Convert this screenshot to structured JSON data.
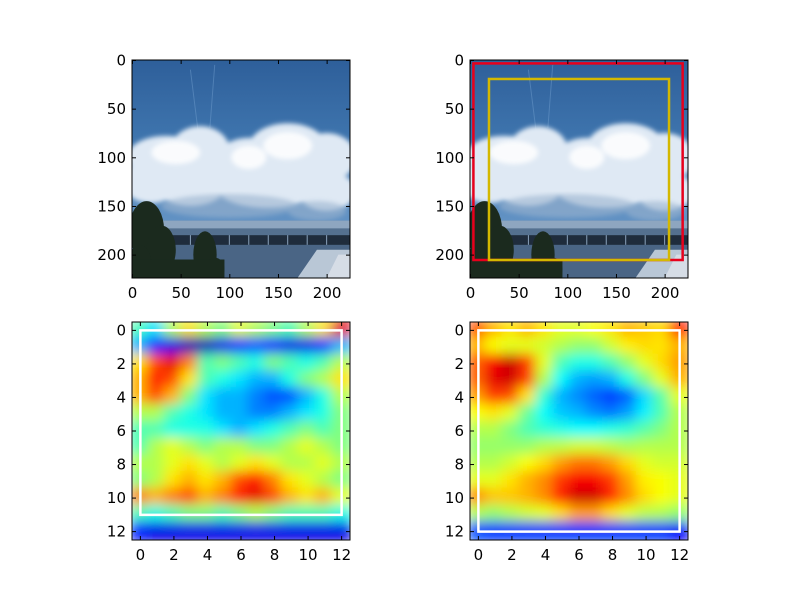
{
  "chart_data": [
    {
      "type": "image",
      "image": "sky-with-clouds-and-building",
      "xlim": [
        -0.5,
        223.5
      ],
      "ylim": [
        223.5,
        -0.5
      ],
      "xticks": [
        "0",
        "50",
        "100",
        "150",
        "200"
      ],
      "yticks": [
        "0",
        "50",
        "100",
        "150",
        "200"
      ]
    },
    {
      "type": "image",
      "image": "sky-with-clouds-and-building",
      "xlim": [
        -0.5,
        223.5
      ],
      "ylim": [
        223.5,
        -0.5
      ],
      "xticks": [
        "0",
        "50",
        "100",
        "150",
        "200"
      ],
      "yticks": [
        "0",
        "50",
        "100",
        "150",
        "200"
      ],
      "boxes": [
        {
          "color": "#e8001c",
          "x0": 3,
          "x1": 218,
          "y0": 3,
          "y1": 205
        },
        {
          "color": "#d4b800",
          "x0": 19,
          "x1": 204,
          "y0": 19,
          "y1": 205
        }
      ]
    },
    {
      "type": "heatmap",
      "colormap": "jet",
      "xlim": [
        -0.5,
        12.5
      ],
      "ylim": [
        12.5,
        -0.5
      ],
      "xticks": [
        "0",
        "2",
        "4",
        "6",
        "8",
        "10",
        "12"
      ],
      "yticks": [
        "0",
        "2",
        "4",
        "6",
        "8",
        "10",
        "12"
      ],
      "values": [
        [
          0.45,
          0.35,
          0.55,
          0.65,
          0.55,
          0.5,
          0.6,
          0.55,
          0.5,
          0.45,
          0.55,
          0.65,
          0.9
        ],
        [
          0.3,
          0.15,
          0.1,
          0.05,
          0.05,
          0.1,
          0.15,
          0.2,
          0.15,
          0.1,
          0.1,
          0.15,
          0.3
        ],
        [
          0.65,
          0.8,
          0.9,
          0.75,
          0.45,
          0.5,
          0.45,
          0.4,
          0.5,
          0.45,
          0.4,
          0.45,
          0.55
        ],
        [
          0.7,
          0.85,
          0.8,
          0.65,
          0.45,
          0.4,
          0.35,
          0.3,
          0.3,
          0.4,
          0.5,
          0.55,
          0.65
        ],
        [
          0.7,
          0.8,
          0.7,
          0.5,
          0.35,
          0.3,
          0.3,
          0.25,
          0.2,
          0.2,
          0.3,
          0.4,
          0.55
        ],
        [
          0.55,
          0.55,
          0.45,
          0.4,
          0.35,
          0.3,
          0.3,
          0.25,
          0.25,
          0.3,
          0.35,
          0.4,
          0.5
        ],
        [
          0.45,
          0.45,
          0.4,
          0.4,
          0.4,
          0.35,
          0.3,
          0.35,
          0.4,
          0.45,
          0.5,
          0.45,
          0.5
        ],
        [
          0.45,
          0.55,
          0.6,
          0.55,
          0.5,
          0.55,
          0.55,
          0.5,
          0.5,
          0.55,
          0.6,
          0.55,
          0.5
        ],
        [
          0.55,
          0.55,
          0.6,
          0.65,
          0.6,
          0.55,
          0.6,
          0.65,
          0.6,
          0.55,
          0.55,
          0.6,
          0.55
        ],
        [
          0.5,
          0.55,
          0.65,
          0.7,
          0.65,
          0.7,
          0.8,
          0.85,
          0.75,
          0.65,
          0.6,
          0.55,
          0.5
        ],
        [
          0.75,
          0.7,
          0.75,
          0.8,
          0.7,
          0.75,
          0.85,
          0.9,
          0.8,
          0.7,
          0.65,
          0.7,
          0.6
        ],
        [
          0.45,
          0.4,
          0.45,
          0.5,
          0.5,
          0.45,
          0.5,
          0.55,
          0.5,
          0.45,
          0.45,
          0.45,
          0.4
        ],
        [
          0.15,
          0.1,
          0.1,
          0.1,
          0.1,
          0.1,
          0.1,
          0.1,
          0.1,
          0.1,
          0.1,
          0.1,
          0.1
        ]
      ],
      "boxes": [
        {
          "color": "#ffffff",
          "x0": 0,
          "x1": 12,
          "y0": 0,
          "y1": 11
        }
      ]
    },
    {
      "type": "heatmap",
      "colormap": "jet",
      "xlim": [
        -0.5,
        12.5
      ],
      "ylim": [
        12.5,
        -0.5
      ],
      "xticks": [
        "0",
        "2",
        "4",
        "6",
        "8",
        "10",
        "12"
      ],
      "yticks": [
        "0",
        "2",
        "4",
        "6",
        "8",
        "10",
        "12"
      ],
      "values": [
        [
          0.8,
          0.7,
          0.65,
          0.7,
          0.65,
          0.6,
          0.6,
          0.62,
          0.65,
          0.7,
          0.68,
          0.66,
          0.85
        ],
        [
          0.7,
          0.62,
          0.6,
          0.6,
          0.58,
          0.55,
          0.52,
          0.52,
          0.58,
          0.64,
          0.66,
          0.65,
          0.7
        ],
        [
          0.78,
          0.88,
          0.93,
          0.82,
          0.6,
          0.45,
          0.4,
          0.4,
          0.45,
          0.52,
          0.6,
          0.66,
          0.72
        ],
        [
          0.78,
          0.9,
          0.92,
          0.82,
          0.55,
          0.38,
          0.3,
          0.28,
          0.3,
          0.4,
          0.5,
          0.6,
          0.7
        ],
        [
          0.72,
          0.82,
          0.8,
          0.65,
          0.42,
          0.3,
          0.26,
          0.22,
          0.18,
          0.22,
          0.34,
          0.46,
          0.6
        ],
        [
          0.62,
          0.65,
          0.6,
          0.48,
          0.38,
          0.32,
          0.3,
          0.26,
          0.24,
          0.28,
          0.36,
          0.45,
          0.55
        ],
        [
          0.55,
          0.55,
          0.5,
          0.45,
          0.42,
          0.4,
          0.38,
          0.38,
          0.4,
          0.42,
          0.46,
          0.5,
          0.55
        ],
        [
          0.52,
          0.52,
          0.52,
          0.52,
          0.55,
          0.56,
          0.58,
          0.58,
          0.56,
          0.54,
          0.55,
          0.55,
          0.55
        ],
        [
          0.55,
          0.55,
          0.58,
          0.62,
          0.66,
          0.72,
          0.76,
          0.76,
          0.72,
          0.66,
          0.6,
          0.58,
          0.58
        ],
        [
          0.6,
          0.6,
          0.65,
          0.7,
          0.74,
          0.82,
          0.88,
          0.88,
          0.82,
          0.72,
          0.64,
          0.62,
          0.6
        ],
        [
          0.74,
          0.68,
          0.68,
          0.7,
          0.74,
          0.84,
          0.92,
          0.92,
          0.84,
          0.74,
          0.66,
          0.62,
          0.6
        ],
        [
          0.55,
          0.52,
          0.55,
          0.58,
          0.6,
          0.66,
          0.72,
          0.72,
          0.66,
          0.6,
          0.56,
          0.55,
          0.52
        ],
        [
          0.2,
          0.18,
          0.18,
          0.18,
          0.18,
          0.18,
          0.18,
          0.18,
          0.18,
          0.18,
          0.18,
          0.18,
          0.12
        ]
      ],
      "boxes": [
        {
          "color": "#ffffff",
          "x0": 0,
          "x1": 12,
          "y0": 0,
          "y1": 12
        }
      ]
    }
  ]
}
